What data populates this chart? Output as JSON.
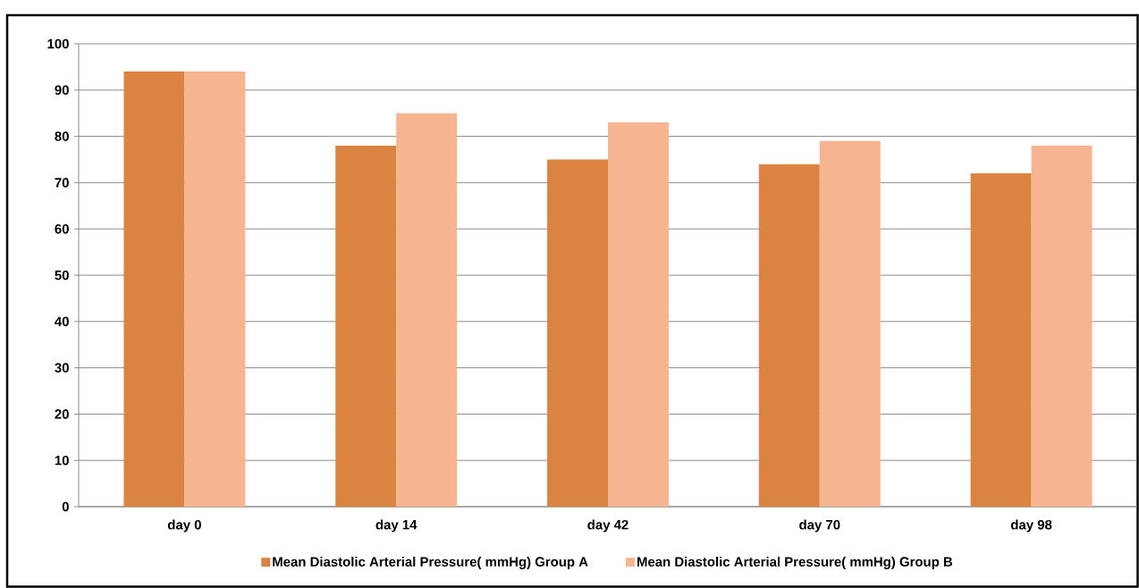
{
  "chart_data": {
    "type": "bar",
    "categories": [
      "day 0",
      "day 14",
      "day 42",
      "day 70",
      "day 98"
    ],
    "series": [
      {
        "name": "Mean Diastolic Arterial Pressure( mmHg) Group A",
        "color": "#db8340",
        "values": [
          94,
          78,
          75,
          74,
          72
        ]
      },
      {
        "name": "Mean Diastolic Arterial Pressure( mmHg) Group B",
        "color": "#f7b491",
        "values": [
          94,
          85,
          83,
          79,
          78
        ]
      }
    ],
    "ylim": [
      0,
      100
    ],
    "yticks": [
      0,
      10,
      20,
      30,
      40,
      50,
      60,
      70,
      80,
      90,
      100
    ],
    "grid": "y",
    "legend": "bottom"
  }
}
